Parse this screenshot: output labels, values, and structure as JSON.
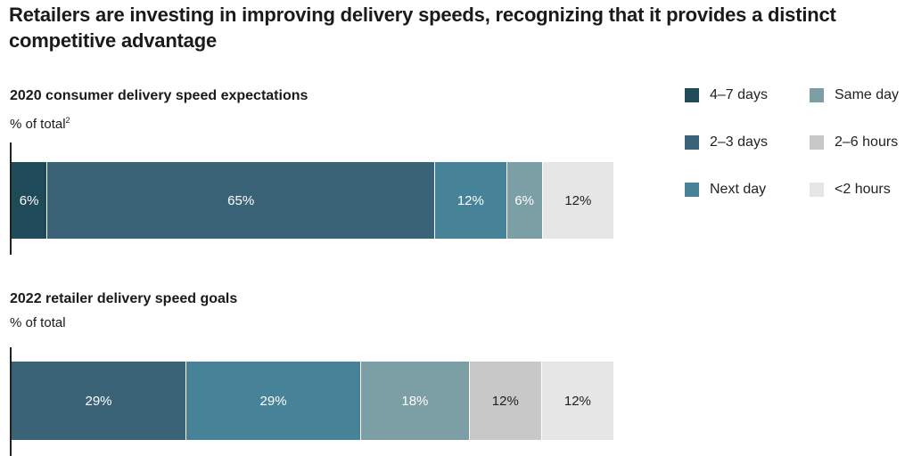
{
  "title": "Retailers are investing in improving delivery speeds, recognizing that it provides a distinct competitive advantage",
  "colors": {
    "4-7 days": "#1f4a5a",
    "2-3 days": "#3b6377",
    "Next day": "#468399",
    "Same day": "#7c9ea5",
    "2-6 hours": "#c8c8c8",
    "<2 hours": "#e6e6e6"
  },
  "legend": {
    "items": [
      {
        "key": "4-7 days",
        "label": "4–7 days"
      },
      {
        "key": "Same day",
        "label": "Same day"
      },
      {
        "key": "2-3 days",
        "label": "2–3 days"
      },
      {
        "key": "2-6 hours",
        "label": "2–6 hours"
      },
      {
        "key": "Next day",
        "label": "Next day"
      },
      {
        "key": "<2 hours",
        "label": "<2 hours"
      }
    ]
  },
  "chart_data": [
    {
      "type": "bar",
      "orientation": "horizontal-stacked",
      "title": "2020 consumer delivery speed expectations",
      "subtitle": "% of total",
      "footnote_marker": "2",
      "series": [
        {
          "name": "4-7 days",
          "value": 6,
          "label": "6%"
        },
        {
          "name": "2-3 days",
          "value": 65,
          "label": "65%"
        },
        {
          "name": "Next day",
          "value": 12,
          "label": "12%"
        },
        {
          "name": "Same day",
          "value": 6,
          "label": "6%"
        },
        {
          "name": "2-6 hours",
          "value": 0,
          "label": ""
        },
        {
          "name": "<2 hours",
          "value": 12,
          "label": "12%"
        }
      ]
    },
    {
      "type": "bar",
      "orientation": "horizontal-stacked",
      "title": "2022 retailer delivery speed goals",
      "subtitle": "% of total",
      "footnote_marker": "",
      "series": [
        {
          "name": "2-3 days",
          "value": 29,
          "label": "29%"
        },
        {
          "name": "Next day",
          "value": 29,
          "label": "29%"
        },
        {
          "name": "Same day",
          "value": 18,
          "label": "18%"
        },
        {
          "name": "2-6 hours",
          "value": 12,
          "label": "12%"
        },
        {
          "name": "<2 hours",
          "value": 12,
          "label": "12%"
        }
      ]
    }
  ]
}
